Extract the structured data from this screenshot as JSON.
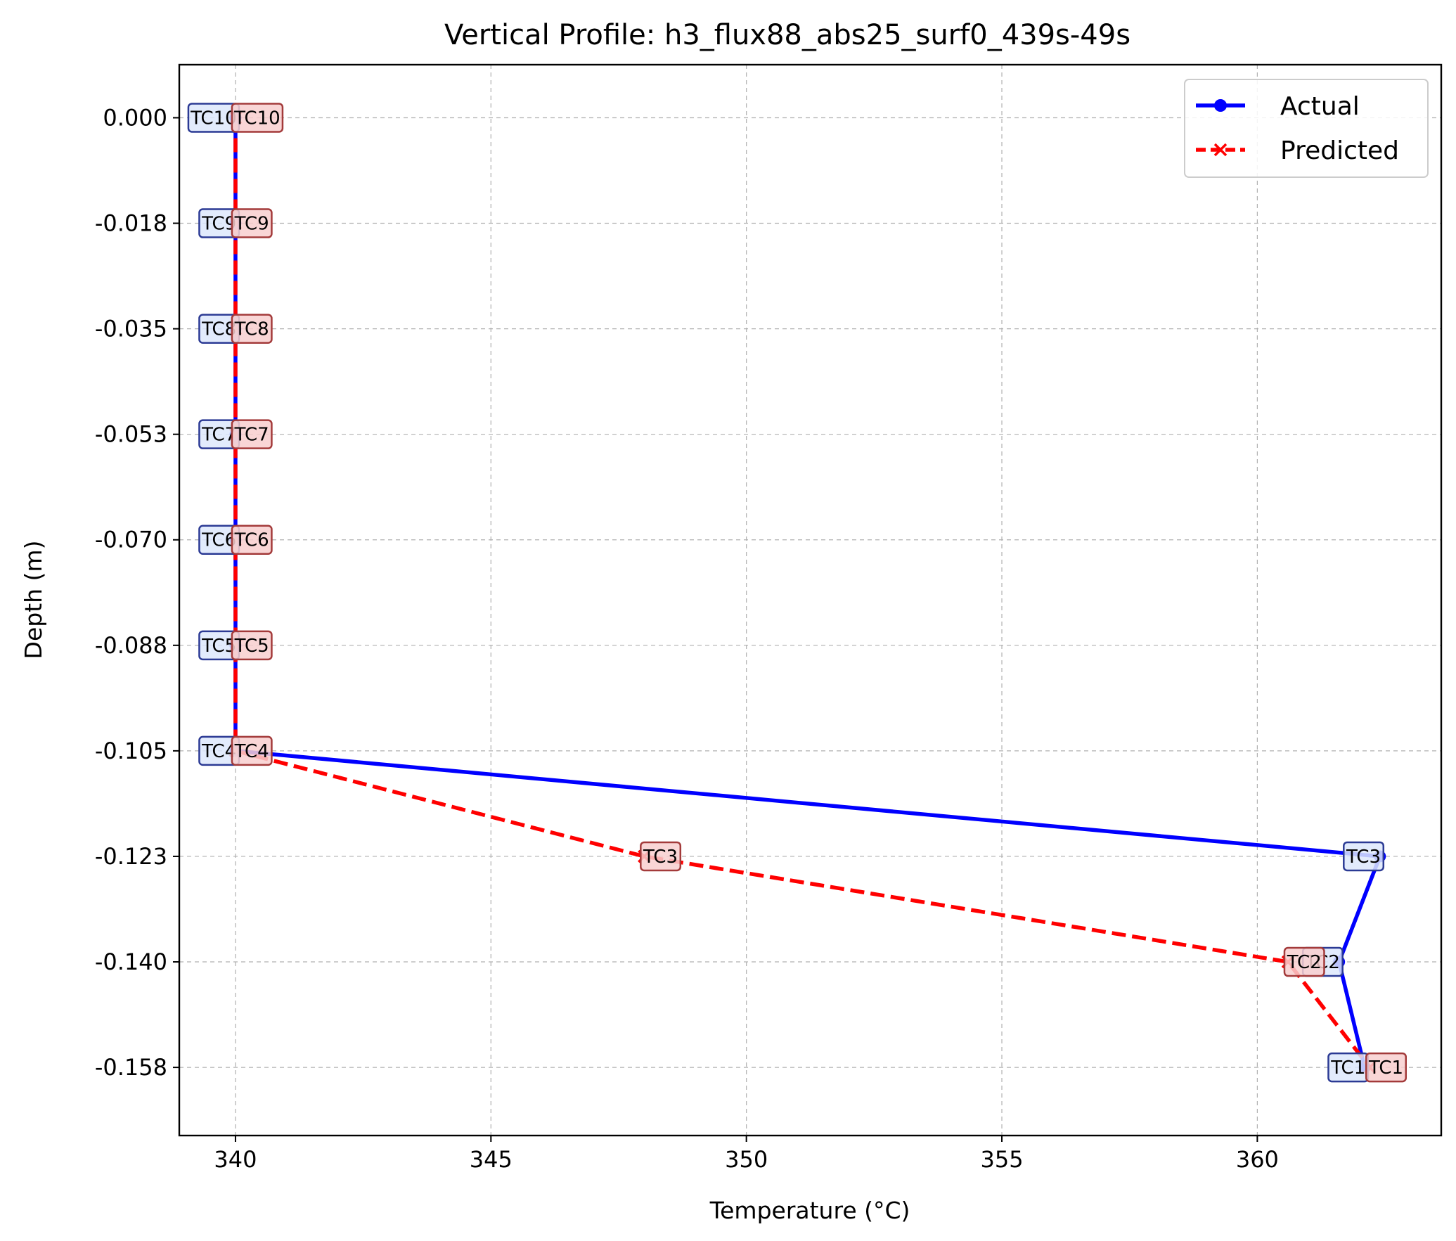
{
  "chart_data": {
    "type": "line",
    "title": "Vertical Profile: h3_flux88_abs25_surf0_439s-49s",
    "xlabel": "Temperature (°C)",
    "ylabel": "Depth (m)",
    "xlim": [
      338.9,
      363.6
    ],
    "ylim": [
      -0.1688,
      0.0088
    ],
    "xticks": [
      340,
      345,
      350,
      355,
      360
    ],
    "yticks": [
      0.0,
      -0.0175,
      -0.035,
      -0.0525,
      -0.07,
      -0.0875,
      -0.105,
      -0.1225,
      -0.14,
      -0.1575
    ],
    "ytick_labels": [
      "0.000",
      "-0.018",
      "-0.035",
      "-0.053",
      "-0.070",
      "-0.088",
      "-0.105",
      "-0.123",
      "-0.140",
      "-0.158"
    ],
    "grid": true,
    "legend_position": "top-right",
    "sensors": [
      "TC10",
      "TC9",
      "TC8",
      "TC7",
      "TC6",
      "TC5",
      "TC4",
      "TC3",
      "TC2",
      "TC1"
    ],
    "y": [
      0.0,
      -0.0175,
      -0.035,
      -0.0525,
      -0.07,
      -0.0875,
      -0.105,
      -0.1225,
      -0.14,
      -0.1575
    ],
    "series": [
      {
        "name": "Actual",
        "color": "#0000ff",
        "marker": "circle",
        "linestyle": "solid",
        "x": [
          340.0,
          340.0,
          340.0,
          340.0,
          340.0,
          340.0,
          340.0,
          362.4,
          361.6,
          362.1
        ]
      },
      {
        "name": "Predicted",
        "color": "#ff0000",
        "marker": "x",
        "linestyle": "dashed",
        "x": [
          340.0,
          340.0,
          340.0,
          340.0,
          340.0,
          340.0,
          340.0,
          348.0,
          360.6,
          362.2
        ]
      }
    ]
  }
}
